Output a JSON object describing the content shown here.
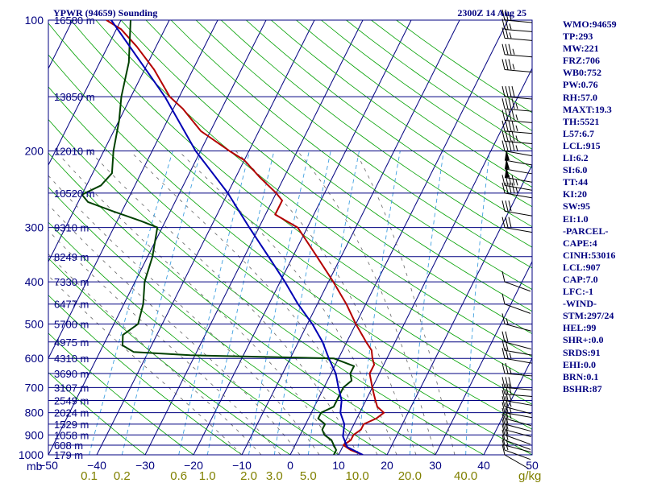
{
  "chart_data": {
    "type": "line",
    "title": "YPWR (94659) Sounding",
    "time_label": "2300Z 14 Aug 25",
    "pressure_unit_label": "mb",
    "mixing_ratio_unit_label": "g/kg",
    "pressure_levels": [
      100,
      200,
      300,
      400,
      500,
      600,
      700,
      800,
      900,
      1000
    ],
    "temperature_ticks": [
      -50,
      -40,
      -30,
      -20,
      -10,
      0,
      10,
      20,
      30,
      40,
      50
    ],
    "mixing_ratio_labels": [
      "0.1",
      "0.2",
      "0.6",
      "1.0",
      "2.0",
      "3.0",
      "5.0",
      "10.0",
      "20.0",
      "40.0"
    ],
    "height_labels": [
      {
        "text": "16580 m",
        "p": 100
      },
      {
        "text": "13850 m",
        "p": 150
      },
      {
        "text": "12010 m",
        "p": 200
      },
      {
        "text": "10520 m",
        "p": 250
      },
      {
        "text": "9310 m",
        "p": 300
      },
      {
        "text": "8249 m",
        "p": 350
      },
      {
        "text": "7330 m",
        "p": 400
      },
      {
        "text": "6477 m",
        "p": 450
      },
      {
        "text": "5700 m",
        "p": 500
      },
      {
        "text": "4975 m",
        "p": 550
      },
      {
        "text": "4310 m",
        "p": 600
      },
      {
        "text": "3690 m",
        "p": 650
      },
      {
        "text": "3107 m",
        "p": 700
      },
      {
        "text": "2549 m",
        "p": 750
      },
      {
        "text": "2024 m",
        "p": 800
      },
      {
        "text": "1529 m",
        "p": 850
      },
      {
        "text": "1058 m",
        "p": 900
      },
      {
        "text": "608 m",
        "p": 950
      },
      {
        "text": "179 m",
        "p": 1000
      }
    ],
    "series": [
      {
        "name": "Temperature",
        "color": "#b40000",
        "points": [
          [
            1000,
            15
          ],
          [
            975,
            12
          ],
          [
            950,
            10
          ],
          [
            925,
            11
          ],
          [
            900,
            11
          ],
          [
            875,
            12
          ],
          [
            850,
            12
          ],
          [
            825,
            14
          ],
          [
            800,
            15
          ],
          [
            775,
            13
          ],
          [
            750,
            12
          ],
          [
            725,
            11
          ],
          [
            700,
            10
          ],
          [
            650,
            8
          ],
          [
            620,
            8
          ],
          [
            600,
            7
          ],
          [
            575,
            6
          ],
          [
            550,
            4
          ],
          [
            500,
            0
          ],
          [
            450,
            -4
          ],
          [
            400,
            -9
          ],
          [
            350,
            -15
          ],
          [
            300,
            -22
          ],
          [
            280,
            -28
          ],
          [
            260,
            -28
          ],
          [
            250,
            -30
          ],
          [
            230,
            -35
          ],
          [
            210,
            -40
          ],
          [
            200,
            -44
          ],
          [
            180,
            -52
          ],
          [
            160,
            -58
          ],
          [
            150,
            -62
          ],
          [
            130,
            -68
          ],
          [
            115,
            -74
          ],
          [
            105,
            -79
          ],
          [
            100,
            -83
          ]
        ]
      },
      {
        "name": "Dewpoint",
        "color": "#004000",
        "points": [
          [
            1000,
            9
          ],
          [
            975,
            9
          ],
          [
            950,
            8
          ],
          [
            925,
            7
          ],
          [
            900,
            5
          ],
          [
            875,
            4
          ],
          [
            850,
            4
          ],
          [
            825,
            2
          ],
          [
            800,
            2
          ],
          [
            775,
            4
          ],
          [
            750,
            4
          ],
          [
            725,
            4
          ],
          [
            700,
            4
          ],
          [
            675,
            5
          ],
          [
            650,
            4
          ],
          [
            625,
            4
          ],
          [
            600,
            -1
          ],
          [
            590,
            -31
          ],
          [
            580,
            -43
          ],
          [
            560,
            -46
          ],
          [
            530,
            -47
          ],
          [
            500,
            -45
          ],
          [
            450,
            -46
          ],
          [
            400,
            -48
          ],
          [
            350,
            -49
          ],
          [
            300,
            -51
          ],
          [
            290,
            -55
          ],
          [
            275,
            -62
          ],
          [
            262,
            -68
          ],
          [
            252,
            -70
          ],
          [
            240,
            -67
          ],
          [
            225,
            -66
          ],
          [
            200,
            -68
          ],
          [
            170,
            -70
          ],
          [
            150,
            -72
          ],
          [
            125,
            -74
          ],
          [
            100,
            -78
          ]
        ]
      },
      {
        "name": "Parcel",
        "color": "#0000b4",
        "points": [
          [
            1000,
            15
          ],
          [
            960,
            11
          ],
          [
            907,
            9
          ],
          [
            850,
            8
          ],
          [
            800,
            6
          ],
          [
            750,
            5
          ],
          [
            700,
            3
          ],
          [
            650,
            1
          ],
          [
            600,
            -2
          ],
          [
            550,
            -5
          ],
          [
            500,
            -9
          ],
          [
            450,
            -14
          ],
          [
            400,
            -19
          ],
          [
            350,
            -25
          ],
          [
            300,
            -32
          ],
          [
            250,
            -40
          ],
          [
            200,
            -51
          ],
          [
            150,
            -63
          ],
          [
            100,
            -82
          ]
        ]
      }
    ],
    "wind_barbs": [
      {
        "p": 1000,
        "dir": 300,
        "spd": 10
      },
      {
        "p": 975,
        "dir": 290,
        "spd": 15
      },
      {
        "p": 950,
        "dir": 285,
        "spd": 15
      },
      {
        "p": 925,
        "dir": 290,
        "spd": 20
      },
      {
        "p": 900,
        "dir": 290,
        "spd": 20
      },
      {
        "p": 875,
        "dir": 285,
        "spd": 20
      },
      {
        "p": 850,
        "dir": 285,
        "spd": 20
      },
      {
        "p": 825,
        "dir": 285,
        "spd": 25
      },
      {
        "p": 800,
        "dir": 280,
        "spd": 25
      },
      {
        "p": 775,
        "dir": 285,
        "spd": 25
      },
      {
        "p": 750,
        "dir": 280,
        "spd": 25
      },
      {
        "p": 725,
        "dir": 275,
        "spd": 30
      },
      {
        "p": 700,
        "dir": 275,
        "spd": 30
      },
      {
        "p": 650,
        "dir": 275,
        "spd": 25
      },
      {
        "p": 600,
        "dir": 280,
        "spd": 25
      },
      {
        "p": 575,
        "dir": 280,
        "spd": 20
      },
      {
        "p": 550,
        "dir": 285,
        "spd": 20
      },
      {
        "p": 500,
        "dir": 285,
        "spd": 15
      },
      {
        "p": 450,
        "dir": 290,
        "spd": 10
      },
      {
        "p": 400,
        "dir": 290,
        "spd": 10
      },
      {
        "p": 300,
        "dir": 280,
        "spd": 30
      },
      {
        "p": 275,
        "dir": 280,
        "spd": 30
      },
      {
        "p": 250,
        "dir": 280,
        "spd": 45
      },
      {
        "p": 240,
        "dir": 280,
        "spd": 45
      },
      {
        "p": 230,
        "dir": 280,
        "spd": 50
      },
      {
        "p": 220,
        "dir": 280,
        "spd": 50
      },
      {
        "p": 210,
        "dir": 280,
        "spd": 50
      },
      {
        "p": 200,
        "dir": 280,
        "spd": 45
      },
      {
        "p": 190,
        "dir": 275,
        "spd": 45
      },
      {
        "p": 180,
        "dir": 275,
        "spd": 45
      },
      {
        "p": 170,
        "dir": 275,
        "spd": 45
      },
      {
        "p": 160,
        "dir": 275,
        "spd": 45
      },
      {
        "p": 150,
        "dir": 275,
        "spd": 40
      },
      {
        "p": 130,
        "dir": 275,
        "spd": 35
      },
      {
        "p": 120,
        "dir": 275,
        "spd": 35
      },
      {
        "p": 110,
        "dir": 275,
        "spd": 25
      },
      {
        "p": 105,
        "dir": 275,
        "spd": 25
      },
      {
        "p": 100,
        "dir": 275,
        "spd": 25
      }
    ]
  },
  "indices": [
    "WMO:94659",
    "TP:293",
    "MW:221",
    "FRZ:706",
    "WB0:752",
    "PW:0.76",
    "RH:57.0",
    "MAXT:19.3",
    "TH:5521",
    "L57:6.7",
    "LCL:915",
    "LI:6.2",
    "SI:6.0",
    "TT:44",
    "KI:20",
    "SW:95",
    "EI:1.0",
    "-PARCEL-",
    "CAPE:4",
    "CINH:53016",
    "LCL:907",
    "CAP:7.0",
    "LFC:-1",
    "-WIND-",
    "STM:297/24",
    "HEL:99",
    "SHR+:0.0",
    "SRDS:91",
    "EHI:0.0",
    "BRN:0.1",
    "BSHR:87"
  ]
}
